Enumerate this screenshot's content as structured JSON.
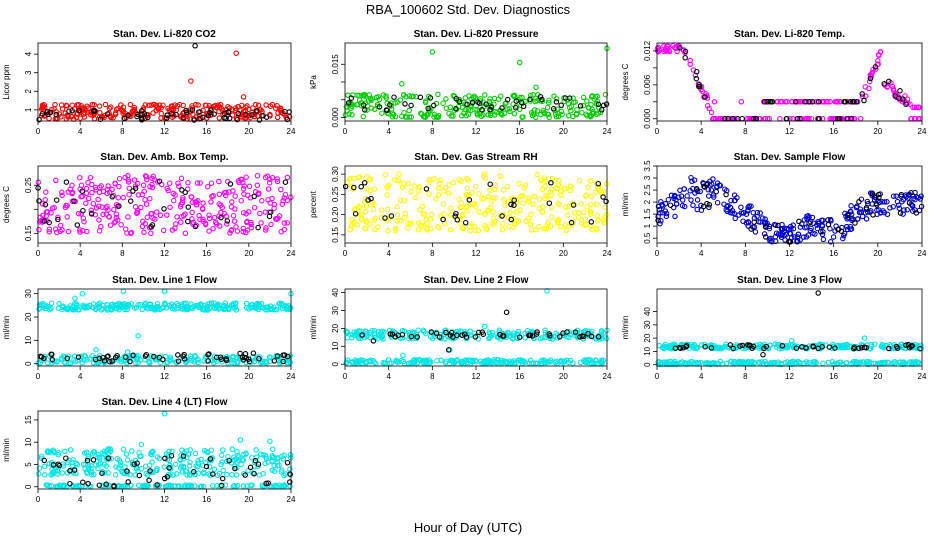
{
  "figure": {
    "title": "RBA_100602  Std. Dev. Diagnostics",
    "xlabel": "Hour of Day (UTC)"
  },
  "chart_data": [
    {
      "type": "scatter",
      "title": "Stan. Dev. Li-820 CO2",
      "ylabel": "Licor ppm",
      "xlim": [
        0,
        24
      ],
      "ylim": [
        0.4,
        4.6
      ],
      "xticks": [
        0,
        4,
        8,
        12,
        16,
        20,
        24
      ],
      "yticks": [
        1,
        2,
        3,
        4
      ],
      "color": "#ff0000",
      "series": [
        {
          "name": "main",
          "color": "#ff0000",
          "band": [
            0.5,
            1.3
          ],
          "n": 260,
          "extra": [
            [
              14.5,
              2.55
            ],
            [
              18.8,
              4.05
            ],
            [
              19.5,
              1.7
            ]
          ]
        },
        {
          "name": "black",
          "color": "#000000",
          "band": [
            0.45,
            1.0
          ],
          "n": 60,
          "extra": [
            [
              14.9,
              4.45
            ]
          ]
        }
      ]
    },
    {
      "type": "scatter",
      "title": "Stan. Dev. Li-820 Pressure",
      "ylabel": "kPa",
      "xlim": [
        0,
        24
      ],
      "ylim": [
        -0.001,
        0.021
      ],
      "xticks": [
        0,
        4,
        8,
        12,
        16,
        20,
        24
      ],
      "yticks": [
        0.0,
        0.005,
        0.01,
        0.015
      ],
      "ytick_labels": [
        "0.000",
        "",
        "",
        "0.015"
      ],
      "color": "#00cc00",
      "series": [
        {
          "name": "main",
          "color": "#00cc00",
          "band": [
            0.0,
            0.0065
          ],
          "n": 260,
          "extra": [
            [
              8.0,
              0.0185
            ],
            [
              16.0,
              0.0155
            ],
            [
              24.0,
              0.0195
            ],
            [
              5.2,
              0.0095
            ],
            [
              17.5,
              0.0085
            ]
          ]
        },
        {
          "name": "black",
          "color": "#000000",
          "band": [
            0.002,
            0.006
          ],
          "n": 45,
          "extra": []
        }
      ]
    },
    {
      "type": "scatter",
      "title": "Stan. Dev. Li-820 Temp.",
      "ylabel": "degrees C",
      "xlim": [
        0,
        24
      ],
      "ylim": [
        -0.0004,
        0.0134
      ],
      "xticks": [
        0,
        4,
        8,
        12,
        16,
        20,
        24
      ],
      "yticks": [
        0.0,
        0.003,
        0.006,
        0.009,
        0.012
      ],
      "ytick_labels": [
        "0.000",
        "",
        "0.006",
        "",
        "0.012"
      ],
      "color": "#ff00ff",
      "series": [
        {
          "name": "main",
          "color": "#ff00ff",
          "profile": "licor_temp",
          "n": 220,
          "extra": []
        },
        {
          "name": "black",
          "color": "#000000",
          "profile": "licor_temp",
          "n": 55,
          "extra": []
        }
      ]
    },
    {
      "type": "scatter",
      "title": "Stan. Dev. Amb. Box Temp.",
      "ylabel": "degrees C",
      "xlim": [
        0,
        24
      ],
      "ylim": [
        0.13,
        0.29
      ],
      "xticks": [
        0,
        4,
        8,
        12,
        16,
        20,
        24
      ],
      "yticks": [
        0.15,
        0.2,
        0.25
      ],
      "ytick_labels": [
        "0.15",
        "",
        "0.25"
      ],
      "color": "#ff00ff",
      "series": [
        {
          "name": "main",
          "color": "#ff00ff",
          "band": [
            0.15,
            0.27
          ],
          "n": 320,
          "extra": []
        },
        {
          "name": "black",
          "color": "#000000",
          "band": [
            0.16,
            0.26
          ],
          "n": 35,
          "extra": []
        }
      ]
    },
    {
      "type": "scatter",
      "title": "Stan. Dev. Gas Stream RH",
      "ylabel": "percent",
      "xlim": [
        0,
        24
      ],
      "ylim": [
        0.13,
        0.32
      ],
      "xticks": [
        0,
        4,
        8,
        12,
        16,
        20,
        24
      ],
      "yticks": [
        0.15,
        0.2,
        0.25,
        0.3
      ],
      "ytick_labels": [
        "0.15",
        "0.20",
        "0.25",
        "0.30"
      ],
      "color": "#ffff00",
      "series": [
        {
          "name": "main",
          "color": "#ffff00",
          "band": [
            0.16,
            0.3
          ],
          "n": 320,
          "extra": []
        },
        {
          "name": "black",
          "color": "#000000",
          "band": [
            0.18,
            0.28
          ],
          "n": 30,
          "extra": []
        }
      ]
    },
    {
      "type": "scatter",
      "title": "Stan. Dev. Sample Flow",
      "ylabel": "ml/min",
      "xlim": [
        0,
        24
      ],
      "ylim": [
        0.3,
        3.5
      ],
      "xticks": [
        0,
        4,
        8,
        12,
        16,
        20,
        24
      ],
      "yticks": [
        0.5,
        1.0,
        1.5,
        2.0,
        2.5,
        3.0,
        3.5
      ],
      "ytick_labels": [
        "0.5",
        "1",
        "1.5",
        "2",
        "2.5",
        "3",
        "3.5"
      ],
      "color": "#0000cc",
      "series": [
        {
          "name": "main",
          "color": "#0000cc",
          "profile": "sample_flow",
          "n": 300,
          "extra": []
        },
        {
          "name": "black",
          "color": "#000000",
          "profile": "sample_flow",
          "n": 40,
          "extra": []
        }
      ]
    },
    {
      "type": "scatter",
      "title": "Stan. Dev. Line 1 Flow",
      "ylabel": "ml/min",
      "xlim": [
        0,
        24
      ],
      "ylim": [
        -1,
        32
      ],
      "xticks": [
        0,
        4,
        8,
        12,
        16,
        20,
        24
      ],
      "yticks": [
        0,
        10,
        20,
        30
      ],
      "color": "#00e5e5",
      "series": [
        {
          "name": "high",
          "color": "#00e5e5",
          "band": [
            23,
            26
          ],
          "n": 260,
          "extra": [
            [
              4.2,
              30
            ],
            [
              8.1,
              31
            ],
            [
              12.0,
              31
            ],
            [
              24.0,
              30
            ],
            [
              9.5,
              12
            ],
            [
              3.5,
              28
            ]
          ]
        },
        {
          "name": "low",
          "color": "#00e5e5",
          "band": [
            0.2,
            3.5
          ],
          "n": 180,
          "extra": [
            [
              5.5,
              6
            ],
            [
              8.5,
              5
            ]
          ]
        },
        {
          "name": "black",
          "color": "#000000",
          "band": [
            0.8,
            4.5
          ],
          "n": 55,
          "extra": []
        }
      ]
    },
    {
      "type": "scatter",
      "title": "Stan. Dev. Line 2 Flow",
      "ylabel": "ml/min",
      "xlim": [
        0,
        24
      ],
      "ylim": [
        -1,
        42
      ],
      "xticks": [
        0,
        4,
        8,
        12,
        16,
        20,
        24
      ],
      "yticks": [
        0,
        10,
        20,
        30,
        40
      ],
      "color": "#00e5e5",
      "series": [
        {
          "name": "high",
          "color": "#00e5e5",
          "band": [
            14,
            19
          ],
          "n": 230,
          "extra": [
            [
              18.5,
              41
            ],
            [
              12.8,
              21
            ],
            [
              24.0,
              19
            ],
            [
              9.6,
              8
            ]
          ]
        },
        {
          "name": "low",
          "color": "#00e5e5",
          "band": [
            0.2,
            2.5
          ],
          "n": 200,
          "extra": [
            [
              5.3,
              5
            ]
          ]
        },
        {
          "name": "black",
          "color": "#000000",
          "band": [
            15,
            18
          ],
          "n": 45,
          "extra": [
            [
              14.8,
              29
            ],
            [
              9.5,
              8
            ],
            [
              2.6,
              13
            ]
          ]
        }
      ]
    },
    {
      "type": "scatter",
      "title": "Stan. Dev. Line 3 Flow",
      "ylabel": "ml/min",
      "xlim": [
        0,
        24
      ],
      "ylim": [
        -1,
        57
      ],
      "xticks": [
        0,
        4,
        8,
        12,
        16,
        20,
        24
      ],
      "yticks": [
        0,
        10,
        20,
        30,
        40
      ],
      "color": "#00e5e5",
      "series": [
        {
          "name": "high",
          "color": "#00e5e5",
          "band": [
            12,
            15.5
          ],
          "n": 230,
          "extra": [
            [
              18.8,
              20
            ],
            [
              12.2,
              18
            ]
          ]
        },
        {
          "name": "low",
          "color": "#00e5e5",
          "band": [
            0.2,
            2.5
          ],
          "n": 200,
          "extra": []
        },
        {
          "name": "black",
          "color": "#000000",
          "band": [
            12,
            15
          ],
          "n": 45,
          "extra": [
            [
              14.6,
              54
            ],
            [
              9.6,
              7.5
            ]
          ]
        }
      ]
    },
    {
      "type": "scatter",
      "title": "Stan. Dev. Line 4 (LT) Flow",
      "ylabel": "ml/min",
      "xlim": [
        0,
        24
      ],
      "ylim": [
        -0.5,
        17
      ],
      "xticks": [
        0,
        4,
        8,
        12,
        16,
        20,
        24
      ],
      "yticks": [
        0,
        5,
        10,
        15
      ],
      "color": "#00e5e5",
      "series": [
        {
          "name": "main",
          "color": "#00e5e5",
          "band": [
            2.5,
            8.5
          ],
          "n": 280,
          "extra": [
            [
              12.0,
              16.4
            ],
            [
              19.2,
              10.5
            ],
            [
              22.0,
              10.2
            ],
            [
              9.8,
              9.5
            ]
          ]
        },
        {
          "name": "zero",
          "color": "#00e5e5",
          "band": [
            0.0,
            0.4
          ],
          "n": 120,
          "extra": []
        },
        {
          "name": "black",
          "color": "#000000",
          "band": [
            0.0,
            7
          ],
          "n": 50,
          "extra": []
        }
      ]
    }
  ]
}
